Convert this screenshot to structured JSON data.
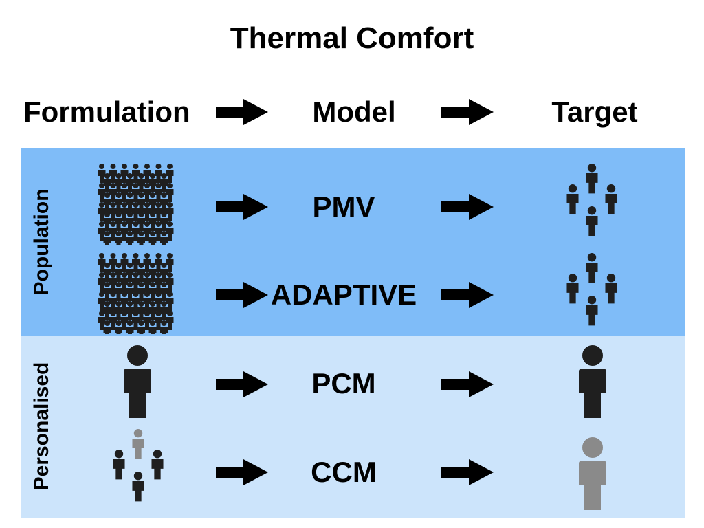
{
  "title": "Thermal Comfort",
  "headers": {
    "formulation": "Formulation",
    "model": "Model",
    "target": "Target"
  },
  "groups": {
    "population": "Population",
    "personalised": "Personalised"
  },
  "models": {
    "pmv": "PMV",
    "adaptive": "ADAPTIVE",
    "pcm": "PCM",
    "ccm": "CCM"
  },
  "colors": {
    "population_band": "#7fbcf8",
    "personalised_band": "#cce4fb",
    "icon_dark": "#1f1f1f",
    "icon_gray": "#8a8a8a"
  },
  "icons": {
    "crowd": "crowd-icon",
    "group": "group-icon",
    "person": "person-icon",
    "arrow": "arrow-right-icon"
  }
}
